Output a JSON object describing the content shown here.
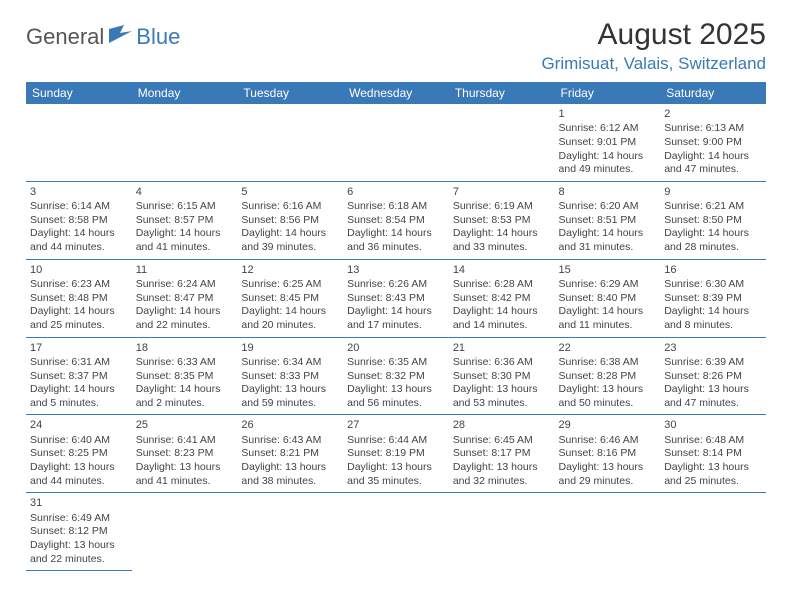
{
  "brand": {
    "general": "General",
    "blue": "Blue"
  },
  "title": "August 2025",
  "location": "Grimisuat, Valais, Switzerland",
  "colors": {
    "header_bg": "#3a79b7",
    "header_text": "#ffffff",
    "accent": "#3a79b7",
    "body_bg": "#ffffff",
    "text": "#444"
  },
  "weekdays": [
    "Sunday",
    "Monday",
    "Tuesday",
    "Wednesday",
    "Thursday",
    "Friday",
    "Saturday"
  ],
  "first_weekday_index": 5,
  "days": [
    {
      "n": 1,
      "sunrise": "6:12 AM",
      "sunset": "9:01 PM",
      "dlh": 14,
      "dlm": 49
    },
    {
      "n": 2,
      "sunrise": "6:13 AM",
      "sunset": "9:00 PM",
      "dlh": 14,
      "dlm": 47
    },
    {
      "n": 3,
      "sunrise": "6:14 AM",
      "sunset": "8:58 PM",
      "dlh": 14,
      "dlm": 44
    },
    {
      "n": 4,
      "sunrise": "6:15 AM",
      "sunset": "8:57 PM",
      "dlh": 14,
      "dlm": 41
    },
    {
      "n": 5,
      "sunrise": "6:16 AM",
      "sunset": "8:56 PM",
      "dlh": 14,
      "dlm": 39
    },
    {
      "n": 6,
      "sunrise": "6:18 AM",
      "sunset": "8:54 PM",
      "dlh": 14,
      "dlm": 36
    },
    {
      "n": 7,
      "sunrise": "6:19 AM",
      "sunset": "8:53 PM",
      "dlh": 14,
      "dlm": 33
    },
    {
      "n": 8,
      "sunrise": "6:20 AM",
      "sunset": "8:51 PM",
      "dlh": 14,
      "dlm": 31
    },
    {
      "n": 9,
      "sunrise": "6:21 AM",
      "sunset": "8:50 PM",
      "dlh": 14,
      "dlm": 28
    },
    {
      "n": 10,
      "sunrise": "6:23 AM",
      "sunset": "8:48 PM",
      "dlh": 14,
      "dlm": 25
    },
    {
      "n": 11,
      "sunrise": "6:24 AM",
      "sunset": "8:47 PM",
      "dlh": 14,
      "dlm": 22
    },
    {
      "n": 12,
      "sunrise": "6:25 AM",
      "sunset": "8:45 PM",
      "dlh": 14,
      "dlm": 20
    },
    {
      "n": 13,
      "sunrise": "6:26 AM",
      "sunset": "8:43 PM",
      "dlh": 14,
      "dlm": 17
    },
    {
      "n": 14,
      "sunrise": "6:28 AM",
      "sunset": "8:42 PM",
      "dlh": 14,
      "dlm": 14
    },
    {
      "n": 15,
      "sunrise": "6:29 AM",
      "sunset": "8:40 PM",
      "dlh": 14,
      "dlm": 11
    },
    {
      "n": 16,
      "sunrise": "6:30 AM",
      "sunset": "8:39 PM",
      "dlh": 14,
      "dlm": 8
    },
    {
      "n": 17,
      "sunrise": "6:31 AM",
      "sunset": "8:37 PM",
      "dlh": 14,
      "dlm": 5
    },
    {
      "n": 18,
      "sunrise": "6:33 AM",
      "sunset": "8:35 PM",
      "dlh": 14,
      "dlm": 2
    },
    {
      "n": 19,
      "sunrise": "6:34 AM",
      "sunset": "8:33 PM",
      "dlh": 13,
      "dlm": 59
    },
    {
      "n": 20,
      "sunrise": "6:35 AM",
      "sunset": "8:32 PM",
      "dlh": 13,
      "dlm": 56
    },
    {
      "n": 21,
      "sunrise": "6:36 AM",
      "sunset": "8:30 PM",
      "dlh": 13,
      "dlm": 53
    },
    {
      "n": 22,
      "sunrise": "6:38 AM",
      "sunset": "8:28 PM",
      "dlh": 13,
      "dlm": 50
    },
    {
      "n": 23,
      "sunrise": "6:39 AM",
      "sunset": "8:26 PM",
      "dlh": 13,
      "dlm": 47
    },
    {
      "n": 24,
      "sunrise": "6:40 AM",
      "sunset": "8:25 PM",
      "dlh": 13,
      "dlm": 44
    },
    {
      "n": 25,
      "sunrise": "6:41 AM",
      "sunset": "8:23 PM",
      "dlh": 13,
      "dlm": 41
    },
    {
      "n": 26,
      "sunrise": "6:43 AM",
      "sunset": "8:21 PM",
      "dlh": 13,
      "dlm": 38
    },
    {
      "n": 27,
      "sunrise": "6:44 AM",
      "sunset": "8:19 PM",
      "dlh": 13,
      "dlm": 35
    },
    {
      "n": 28,
      "sunrise": "6:45 AM",
      "sunset": "8:17 PM",
      "dlh": 13,
      "dlm": 32
    },
    {
      "n": 29,
      "sunrise": "6:46 AM",
      "sunset": "8:16 PM",
      "dlh": 13,
      "dlm": 29
    },
    {
      "n": 30,
      "sunrise": "6:48 AM",
      "sunset": "8:14 PM",
      "dlh": 13,
      "dlm": 25
    },
    {
      "n": 31,
      "sunrise": "6:49 AM",
      "sunset": "8:12 PM",
      "dlh": 13,
      "dlm": 22
    }
  ],
  "labels": {
    "sunrise": "Sunrise: ",
    "sunset": "Sunset: ",
    "daylight": "Daylight: ",
    "hours": " hours",
    "and": "and ",
    "minutes": " minutes."
  }
}
